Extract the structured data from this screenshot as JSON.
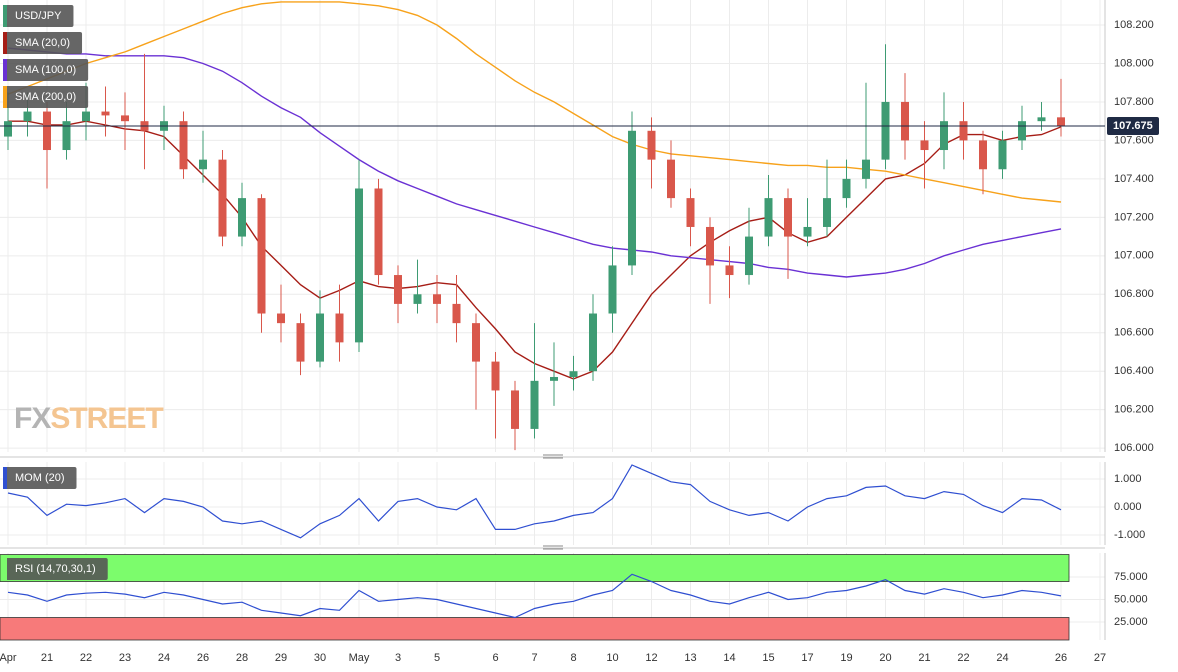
{
  "chart_data": [
    {
      "type": "candlestick",
      "symbol": "USD/JPY",
      "symbol_color": "#3e9b73",
      "watermark": [
        "FX",
        "STREET"
      ],
      "up_color": "#3e9b73",
      "down_color": "#d9574b",
      "ohlc": [
        [
          107.62,
          107.85,
          107.55,
          107.7
        ],
        [
          107.7,
          107.85,
          107.62,
          107.75
        ],
        [
          107.75,
          107.8,
          107.35,
          107.55
        ],
        [
          107.55,
          107.8,
          107.5,
          107.7
        ],
        [
          107.7,
          107.9,
          107.6,
          107.75
        ],
        [
          107.75,
          107.88,
          107.62,
          107.73
        ],
        [
          107.73,
          107.85,
          107.55,
          107.7
        ],
        [
          107.7,
          108.05,
          107.45,
          107.65
        ],
        [
          107.65,
          107.78,
          107.55,
          107.7
        ],
        [
          107.7,
          107.75,
          107.4,
          107.45
        ],
        [
          107.45,
          107.65,
          107.38,
          107.5
        ],
        [
          107.5,
          107.55,
          107.05,
          107.1
        ],
        [
          107.1,
          107.38,
          107.05,
          107.3
        ],
        [
          107.3,
          107.32,
          106.6,
          106.7
        ],
        [
          106.7,
          106.85,
          106.55,
          106.65
        ],
        [
          106.65,
          106.7,
          106.38,
          106.45
        ],
        [
          106.45,
          106.82,
          106.42,
          106.7
        ],
        [
          106.7,
          106.85,
          106.45,
          106.55
        ],
        [
          106.55,
          107.5,
          106.5,
          107.35
        ],
        [
          107.35,
          107.4,
          106.85,
          106.9
        ],
        [
          106.9,
          106.95,
          106.65,
          106.75
        ],
        [
          106.75,
          106.98,
          106.7,
          106.8
        ],
        [
          106.8,
          106.9,
          106.65,
          106.75
        ],
        [
          106.75,
          106.9,
          106.55,
          106.65
        ],
        [
          106.65,
          106.7,
          106.2,
          106.45
        ],
        [
          106.45,
          106.5,
          106.05,
          106.3
        ],
        [
          106.3,
          106.35,
          105.99,
          106.1
        ],
        [
          106.1,
          106.65,
          106.05,
          106.35
        ],
        [
          106.35,
          106.55,
          106.22,
          106.37
        ],
        [
          106.37,
          106.48,
          106.3,
          106.4
        ],
        [
          106.4,
          106.8,
          106.35,
          106.7
        ],
        [
          106.7,
          107.05,
          106.6,
          106.95
        ],
        [
          106.95,
          107.75,
          106.9,
          107.65
        ],
        [
          107.65,
          107.72,
          107.35,
          107.5
        ],
        [
          107.5,
          107.6,
          107.25,
          107.3
        ],
        [
          107.3,
          107.35,
          107.05,
          107.15
        ],
        [
          107.15,
          107.2,
          106.75,
          106.95
        ],
        [
          106.95,
          107.05,
          106.78,
          106.9
        ],
        [
          106.9,
          107.25,
          106.85,
          107.1
        ],
        [
          107.1,
          107.42,
          107.05,
          107.3
        ],
        [
          107.3,
          107.35,
          106.88,
          107.1
        ],
        [
          107.1,
          107.3,
          107.05,
          107.15
        ],
        [
          107.15,
          107.5,
          107.1,
          107.3
        ],
        [
          107.3,
          107.5,
          107.25,
          107.4
        ],
        [
          107.4,
          107.9,
          107.35,
          107.5
        ],
        [
          107.5,
          108.1,
          107.45,
          107.8
        ],
        [
          107.8,
          107.95,
          107.5,
          107.6
        ],
        [
          107.6,
          107.7,
          107.35,
          107.55
        ],
        [
          107.55,
          107.85,
          107.45,
          107.7
        ],
        [
          107.7,
          107.8,
          107.5,
          107.6
        ],
        [
          107.6,
          107.65,
          107.32,
          107.45
        ],
        [
          107.45,
          107.65,
          107.4,
          107.6
        ],
        [
          107.6,
          107.78,
          107.55,
          107.7
        ],
        [
          107.7,
          107.8,
          107.65,
          107.72
        ],
        [
          107.72,
          107.92,
          107.62,
          107.675
        ],
        null,
        null
      ],
      "overlays": [
        {
          "name": "SMA (20,0)",
          "color": "#a61d16",
          "values": [
            107.7,
            107.7,
            107.68,
            107.68,
            107.7,
            107.68,
            107.66,
            107.65,
            107.62,
            107.52,
            107.42,
            107.32,
            107.2,
            107.05,
            106.95,
            106.85,
            106.78,
            106.82,
            106.87,
            106.84,
            106.83,
            106.84,
            106.86,
            106.85,
            106.73,
            106.62,
            106.5,
            106.44,
            106.4,
            106.36,
            106.4,
            106.5,
            106.65,
            106.8,
            106.9,
            107.0,
            107.07,
            107.13,
            107.18,
            107.2,
            107.12,
            107.07,
            107.1,
            107.2,
            107.3,
            107.4,
            107.42,
            107.48,
            107.58,
            107.63,
            107.63,
            107.6,
            107.62,
            107.63,
            107.67,
            null,
            null
          ]
        },
        {
          "name": "SMA (100,0)",
          "color": "#6a31d4",
          "values": [
            108.08,
            108.07,
            108.06,
            108.05,
            108.05,
            108.04,
            108.04,
            108.04,
            108.04,
            108.03,
            108.0,
            107.96,
            107.9,
            107.83,
            107.77,
            107.72,
            107.64,
            107.57,
            107.5,
            107.44,
            107.39,
            107.35,
            107.31,
            107.27,
            107.24,
            107.21,
            107.18,
            107.15,
            107.12,
            107.09,
            107.06,
            107.04,
            107.03,
            107.02,
            107.0,
            106.99,
            106.98,
            106.97,
            106.96,
            106.94,
            106.93,
            106.91,
            106.9,
            106.89,
            106.9,
            106.91,
            106.93,
            106.96,
            107.0,
            107.03,
            107.06,
            107.08,
            107.1,
            107.12,
            107.14,
            null,
            null
          ]
        },
        {
          "name": "SMA (200,0)",
          "color": "#f7a21b",
          "values": [
            107.84,
            107.88,
            107.92,
            107.96,
            108.0,
            108.03,
            108.06,
            108.1,
            108.14,
            108.18,
            108.22,
            108.26,
            108.29,
            108.31,
            108.32,
            108.32,
            108.32,
            108.32,
            108.31,
            108.3,
            108.28,
            108.25,
            108.2,
            108.13,
            108.05,
            107.98,
            107.91,
            107.85,
            107.8,
            107.74,
            107.68,
            107.62,
            107.58,
            107.55,
            107.53,
            107.52,
            107.51,
            107.5,
            107.49,
            107.48,
            107.47,
            107.47,
            107.46,
            107.46,
            107.45,
            107.44,
            107.42,
            107.4,
            107.38,
            107.36,
            107.34,
            107.32,
            107.3,
            107.29,
            107.28,
            null,
            null
          ]
        }
      ],
      "ylim": [
        105.98,
        108.33
      ],
      "yticks": [
        {
          "value": 106.0,
          "label": "106.000"
        },
        {
          "value": 106.2,
          "label": "106.200"
        },
        {
          "value": 106.4,
          "label": "106.400"
        },
        {
          "value": 106.6,
          "label": "106.600"
        },
        {
          "value": 106.8,
          "label": "106.800"
        },
        {
          "value": 107.0,
          "label": "107.000"
        },
        {
          "value": 107.2,
          "label": "107.200"
        },
        {
          "value": 107.4,
          "label": "107.400"
        },
        {
          "value": 107.6,
          "label": "107.600"
        },
        {
          "value": 107.8,
          "label": "107.800"
        },
        {
          "value": 108.0,
          "label": "108.000"
        },
        {
          "value": 108.2,
          "label": "108.200"
        }
      ],
      "last_price": {
        "value": 107.675,
        "label": "107.675"
      },
      "grid": true
    },
    {
      "type": "line",
      "label": "MOM (20)",
      "label_color": "#2f4fd1",
      "color": "#2f4fd1",
      "values": [
        0.5,
        0.35,
        -0.3,
        0.1,
        0.05,
        0.15,
        0.3,
        -0.2,
        0.3,
        0.2,
        0.0,
        -0.5,
        -0.6,
        -0.5,
        -0.8,
        -1.1,
        -0.6,
        -0.3,
        0.3,
        -0.5,
        0.2,
        0.3,
        0.0,
        -0.1,
        0.3,
        -0.8,
        -0.8,
        -0.6,
        -0.5,
        -0.3,
        -0.2,
        0.3,
        1.5,
        1.2,
        0.9,
        0.8,
        0.2,
        -0.1,
        -0.3,
        -0.2,
        -0.5,
        0.0,
        0.3,
        0.4,
        0.7,
        0.75,
        0.4,
        0.3,
        0.55,
        0.45,
        0.05,
        -0.2,
        0.3,
        0.25,
        -0.1,
        null,
        null
      ],
      "ylim": [
        -1.357,
        1.607
      ],
      "yticks": [
        {
          "value": -1,
          "label": "-1.000"
        },
        {
          "value": 0,
          "label": "0.000"
        },
        {
          "value": 1,
          "label": "1.000"
        }
      ],
      "grid": true
    },
    {
      "type": "line",
      "label": "RSI (14,70,30,1)",
      "label_color": "#7cfc6c",
      "color": "#2f4fd1",
      "bands": [
        {
          "from": 70,
          "to": 100,
          "color": "#7cfc6c"
        },
        {
          "from": 0,
          "to": 30,
          "color": "#f77a7a"
        }
      ],
      "values": [
        58,
        55,
        48,
        55,
        57,
        58,
        56,
        52,
        58,
        55,
        50,
        45,
        47,
        38,
        35,
        32,
        40,
        38,
        60,
        48,
        50,
        52,
        50,
        45,
        40,
        35,
        30,
        40,
        45,
        48,
        55,
        60,
        78,
        70,
        60,
        55,
        48,
        45,
        52,
        58,
        50,
        52,
        58,
        60,
        65,
        72,
        60,
        56,
        62,
        58,
        52,
        55,
        60,
        58,
        54,
        null,
        null
      ],
      "ylim": [
        5,
        101.7
      ],
      "yticks": [
        {
          "value": 25,
          "label": "25.000"
        },
        {
          "value": 50,
          "label": "50.000"
        },
        {
          "value": 75,
          "label": "75.000"
        }
      ],
      "grid": true,
      "categories": [
        "Apr",
        null,
        "21",
        null,
        "22",
        null,
        "23",
        null,
        "24",
        null,
        "26",
        null,
        "28",
        null,
        "29",
        null,
        "30",
        null,
        "May",
        null,
        "3",
        null,
        "5",
        null,
        null,
        "6",
        null,
        "7",
        null,
        "8",
        null,
        "10",
        null,
        "12",
        null,
        "13",
        null,
        "14",
        null,
        "15",
        null,
        "17",
        null,
        "19",
        null,
        "20",
        null,
        "21",
        null,
        "22",
        null,
        "24",
        null,
        null,
        "26",
        null,
        "27"
      ]
    }
  ]
}
